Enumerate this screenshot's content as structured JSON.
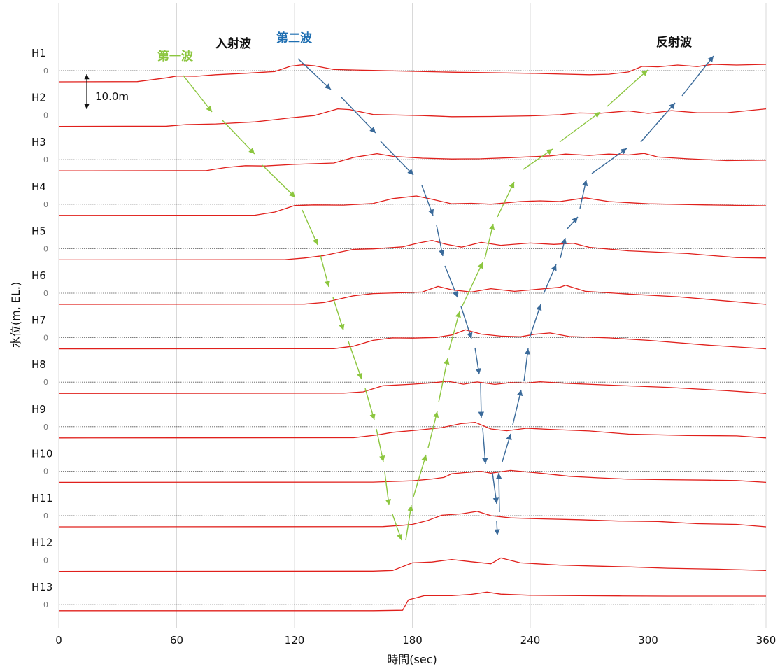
{
  "chart_data": {
    "type": "line",
    "xlabel": "時間(sec)",
    "ylabel": "水位(m, EL.)",
    "xlim": [
      0,
      360
    ],
    "xticks": [
      "0",
      "60",
      "120",
      "180",
      "240",
      "300",
      "360"
    ],
    "zero_label": "0",
    "scale_label": "10.0m",
    "line_color": "#e0201c",
    "annotations": [
      {
        "text": "第一波",
        "color": "#8cc63f"
      },
      {
        "text": "入射波",
        "color": "#111111"
      },
      {
        "text": "第二波",
        "color": "#1f6fb2"
      },
      {
        "text": "反射波",
        "color": "#111111"
      }
    ],
    "series": [
      {
        "name": "H1",
        "points": [
          [
            0,
            -5.0
          ],
          [
            40,
            -4.9
          ],
          [
            55,
            -3.2
          ],
          [
            60,
            -2.4
          ],
          [
            70,
            -2.5
          ],
          [
            80,
            -1.8
          ],
          [
            95,
            -1.2
          ],
          [
            110,
            -0.4
          ],
          [
            118,
            2.0
          ],
          [
            124,
            2.6
          ],
          [
            130,
            2.2
          ],
          [
            140,
            0.5
          ],
          [
            160,
            0.1
          ],
          [
            200,
            -0.7
          ],
          [
            240,
            -1.2
          ],
          [
            270,
            -1.8
          ],
          [
            280,
            -1.6
          ],
          [
            290,
            -0.6
          ],
          [
            297,
            1.9
          ],
          [
            305,
            1.7
          ],
          [
            315,
            2.5
          ],
          [
            325,
            1.8
          ],
          [
            333,
            2.8
          ],
          [
            345,
            2.5
          ],
          [
            360,
            2.8
          ]
        ]
      },
      {
        "name": "H2",
        "points": [
          [
            0,
            -5.0
          ],
          [
            55,
            -4.9
          ],
          [
            65,
            -4.2
          ],
          [
            80,
            -3.9
          ],
          [
            100,
            -3.0
          ],
          [
            118,
            -1.2
          ],
          [
            130,
            -0.2
          ],
          [
            142,
            2.8
          ],
          [
            148,
            2.5
          ],
          [
            160,
            0.3
          ],
          [
            185,
            -0.2
          ],
          [
            200,
            -0.7
          ],
          [
            220,
            -0.6
          ],
          [
            240,
            -0.3
          ],
          [
            255,
            0.2
          ],
          [
            265,
            1.0
          ],
          [
            275,
            0.8
          ],
          [
            290,
            1.9
          ],
          [
            300,
            0.8
          ],
          [
            312,
            2.0
          ],
          [
            325,
            1.1
          ],
          [
            340,
            1.1
          ],
          [
            360,
            2.8
          ]
        ]
      },
      {
        "name": "H3",
        "points": [
          [
            0,
            -5.0
          ],
          [
            75,
            -4.9
          ],
          [
            85,
            -3.5
          ],
          [
            95,
            -2.7
          ],
          [
            105,
            -2.8
          ],
          [
            120,
            -2.1
          ],
          [
            140,
            -1.5
          ],
          [
            150,
            1.0
          ],
          [
            162,
            2.7
          ],
          [
            170,
            1.5
          ],
          [
            185,
            0.7
          ],
          [
            200,
            0.3
          ],
          [
            215,
            0.4
          ],
          [
            230,
            0.9
          ],
          [
            250,
            1.7
          ],
          [
            258,
            2.5
          ],
          [
            270,
            1.9
          ],
          [
            280,
            2.5
          ],
          [
            290,
            2.1
          ],
          [
            298,
            2.8
          ],
          [
            305,
            1.2
          ],
          [
            320,
            0.4
          ],
          [
            340,
            -0.4
          ],
          [
            360,
            -0.2
          ]
        ]
      },
      {
        "name": "H4",
        "points": [
          [
            0,
            -5.0
          ],
          [
            100,
            -4.9
          ],
          [
            110,
            -3.5
          ],
          [
            120,
            -0.6
          ],
          [
            130,
            -0.3
          ],
          [
            145,
            -0.4
          ],
          [
            160,
            0.3
          ],
          [
            170,
            2.5
          ],
          [
            182,
            3.7
          ],
          [
            190,
            2.2
          ],
          [
            200,
            0.2
          ],
          [
            210,
            0.4
          ],
          [
            220,
            0.0
          ],
          [
            235,
            1.2
          ],
          [
            245,
            1.5
          ],
          [
            255,
            1.2
          ],
          [
            263,
            2.2
          ],
          [
            268,
            2.8
          ],
          [
            280,
            1.2
          ],
          [
            300,
            0.2
          ],
          [
            330,
            -0.3
          ],
          [
            360,
            -0.7
          ]
        ]
      },
      {
        "name": "H5",
        "points": [
          [
            0,
            -5.0
          ],
          [
            115,
            -4.9
          ],
          [
            125,
            -4.2
          ],
          [
            135,
            -3.1
          ],
          [
            150,
            -0.3
          ],
          [
            160,
            -0.1
          ],
          [
            175,
            0.8
          ],
          [
            183,
            2.5
          ],
          [
            190,
            3.7
          ],
          [
            197,
            2.0
          ],
          [
            205,
            0.7
          ],
          [
            215,
            2.8
          ],
          [
            225,
            1.5
          ],
          [
            240,
            2.5
          ],
          [
            252,
            1.9
          ],
          [
            262,
            2.4
          ],
          [
            270,
            0.6
          ],
          [
            290,
            -1.0
          ],
          [
            320,
            -2.2
          ],
          [
            345,
            -4.0
          ],
          [
            360,
            -4.2
          ]
        ]
      },
      {
        "name": "H6",
        "points": [
          [
            0,
            -5.0
          ],
          [
            125,
            -4.9
          ],
          [
            135,
            -4.2
          ],
          [
            150,
            -1.2
          ],
          [
            160,
            -0.2
          ],
          [
            175,
            0.2
          ],
          [
            185,
            0.5
          ],
          [
            193,
            3.0
          ],
          [
            200,
            1.5
          ],
          [
            210,
            0.5
          ],
          [
            220,
            2.0
          ],
          [
            232,
            0.8
          ],
          [
            245,
            1.8
          ],
          [
            255,
            2.6
          ],
          [
            258,
            3.5
          ],
          [
            268,
            0.8
          ],
          [
            290,
            -0.4
          ],
          [
            315,
            -1.6
          ],
          [
            340,
            -3.5
          ],
          [
            360,
            -5.0
          ]
        ]
      },
      {
        "name": "H7",
        "points": [
          [
            0,
            -5.0
          ],
          [
            140,
            -4.9
          ],
          [
            150,
            -3.8
          ],
          [
            160,
            -1.2
          ],
          [
            170,
            -0.1
          ],
          [
            180,
            -0.2
          ],
          [
            192,
            0.1
          ],
          [
            200,
            1.2
          ],
          [
            207,
            3.5
          ],
          [
            215,
            1.6
          ],
          [
            225,
            0.7
          ],
          [
            235,
            0.4
          ],
          [
            242,
            1.5
          ],
          [
            250,
            2.1
          ],
          [
            260,
            0.5
          ],
          [
            280,
            -0.1
          ],
          [
            300,
            -1.2
          ],
          [
            330,
            -3.3
          ],
          [
            360,
            -5.0
          ]
        ]
      },
      {
        "name": "H8",
        "points": [
          [
            0,
            -5.0
          ],
          [
            145,
            -4.9
          ],
          [
            155,
            -4.3
          ],
          [
            165,
            -1.6
          ],
          [
            180,
            -0.9
          ],
          [
            190,
            -0.3
          ],
          [
            198,
            0.4
          ],
          [
            206,
            -0.9
          ],
          [
            213,
            0.1
          ],
          [
            222,
            -1.0
          ],
          [
            230,
            -0.2
          ],
          [
            238,
            -0.4
          ],
          [
            245,
            0.2
          ],
          [
            258,
            -0.5
          ],
          [
            280,
            -1.3
          ],
          [
            310,
            -2.3
          ],
          [
            340,
            -3.8
          ],
          [
            360,
            -5.0
          ]
        ]
      },
      {
        "name": "H9",
        "points": [
          [
            0,
            -5.0
          ],
          [
            150,
            -4.9
          ],
          [
            162,
            -3.7
          ],
          [
            170,
            -2.5
          ],
          [
            182,
            -1.6
          ],
          [
            195,
            -0.4
          ],
          [
            205,
            1.4
          ],
          [
            212,
            1.9
          ],
          [
            220,
            -1.0
          ],
          [
            228,
            -1.8
          ],
          [
            238,
            -0.7
          ],
          [
            250,
            -1.2
          ],
          [
            270,
            -1.9
          ],
          [
            290,
            -3.3
          ],
          [
            320,
            -3.9
          ],
          [
            345,
            -4.1
          ],
          [
            360,
            -5.0
          ]
        ]
      },
      {
        "name": "H10",
        "points": [
          [
            0,
            -5.0
          ],
          [
            160,
            -4.9
          ],
          [
            170,
            -4.6
          ],
          [
            180,
            -4.3
          ],
          [
            190,
            -3.5
          ],
          [
            196,
            -2.8
          ],
          [
            200,
            -1.2
          ],
          [
            206,
            -0.7
          ],
          [
            215,
            -0.1
          ],
          [
            220,
            -0.9
          ],
          [
            230,
            0.3
          ],
          [
            245,
            -0.9
          ],
          [
            260,
            -2.3
          ],
          [
            275,
            -3.0
          ],
          [
            290,
            -3.6
          ],
          [
            310,
            -3.8
          ],
          [
            330,
            -4.0
          ],
          [
            345,
            -4.2
          ],
          [
            360,
            -5.0
          ]
        ]
      },
      {
        "name": "H11",
        "points": [
          [
            0,
            -5.0
          ],
          [
            165,
            -4.9
          ],
          [
            175,
            -4.3
          ],
          [
            180,
            -3.9
          ],
          [
            188,
            -2.1
          ],
          [
            195,
            0.2
          ],
          [
            205,
            0.8
          ],
          [
            213,
            1.9
          ],
          [
            220,
            0.0
          ],
          [
            230,
            -1.0
          ],
          [
            245,
            -1.4
          ],
          [
            265,
            -1.8
          ],
          [
            285,
            -2.4
          ],
          [
            305,
            -2.6
          ],
          [
            325,
            -3.6
          ],
          [
            345,
            -3.9
          ],
          [
            360,
            -5.0
          ]
        ]
      },
      {
        "name": "H12",
        "points": [
          [
            0,
            -5.0
          ],
          [
            160,
            -4.9
          ],
          [
            170,
            -4.6
          ],
          [
            180,
            -1.2
          ],
          [
            190,
            -0.8
          ],
          [
            200,
            0.3
          ],
          [
            210,
            -0.7
          ],
          [
            220,
            -1.6
          ],
          [
            225,
            1.0
          ],
          [
            235,
            -1.2
          ],
          [
            255,
            -2.2
          ],
          [
            275,
            -2.7
          ],
          [
            290,
            -3.0
          ],
          [
            310,
            -3.6
          ],
          [
            335,
            -4.0
          ],
          [
            360,
            -4.6
          ]
        ]
      },
      {
        "name": "H13",
        "points": [
          [
            0,
            -2.7
          ],
          [
            160,
            -2.7
          ],
          [
            175,
            -2.5
          ],
          [
            178,
            2.2
          ],
          [
            186,
            4.0
          ],
          [
            200,
            4.0
          ],
          [
            210,
            4.6
          ],
          [
            218,
            5.6
          ],
          [
            225,
            4.7
          ],
          [
            240,
            4.2
          ],
          [
            265,
            4.0
          ],
          [
            285,
            3.9
          ],
          [
            310,
            3.8
          ],
          [
            360,
            3.8
          ]
        ]
      }
    ]
  }
}
